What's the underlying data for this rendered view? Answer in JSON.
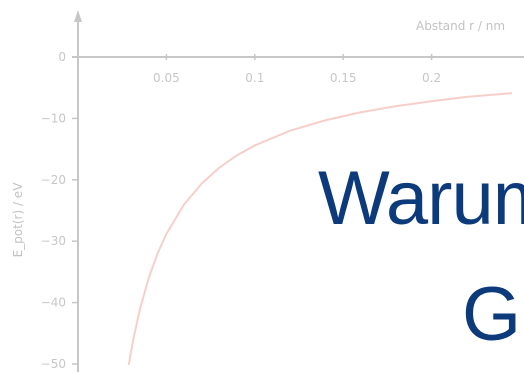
{
  "chart_data": {
    "type": "line",
    "xlabel": "Abstand r / nm",
    "ylabel": "E_pot(r) / eV",
    "x_ticks": [
      0,
      0.05,
      0.1,
      0.15,
      0.2
    ],
    "x_tick_labels": [
      "0.05",
      "0.1",
      "0.15",
      "0.2"
    ],
    "y_ticks": [
      0,
      -10,
      -20,
      -30,
      -40,
      -50
    ],
    "y_tick_labels": [
      "0",
      "−10",
      "−20",
      "−30",
      "−40",
      "−50"
    ],
    "xlim": [
      0,
      0.25
    ],
    "ylim": [
      -50,
      0
    ],
    "grid": false,
    "series": [
      {
        "name": "",
        "x": [
          0.0288,
          0.03,
          0.032,
          0.035,
          0.04,
          0.045,
          0.05,
          0.06,
          0.07,
          0.08,
          0.09,
          0.1,
          0.12,
          0.14,
          0.16,
          0.18,
          0.2,
          0.22,
          0.245
        ],
        "y": [
          -50.0,
          -48.0,
          -45.0,
          -41.1,
          -36.0,
          -32.0,
          -28.8,
          -24.0,
          -20.6,
          -18.0,
          -16.0,
          -14.4,
          -12.0,
          -10.3,
          -9.0,
          -8.0,
          -7.2,
          -6.5,
          -5.9
        ],
        "color": "#f7cfca"
      }
    ],
    "axis_color": "#c7c7c7"
  },
  "overlay": {
    "line1": "Warum",
    "line2": "G"
  }
}
